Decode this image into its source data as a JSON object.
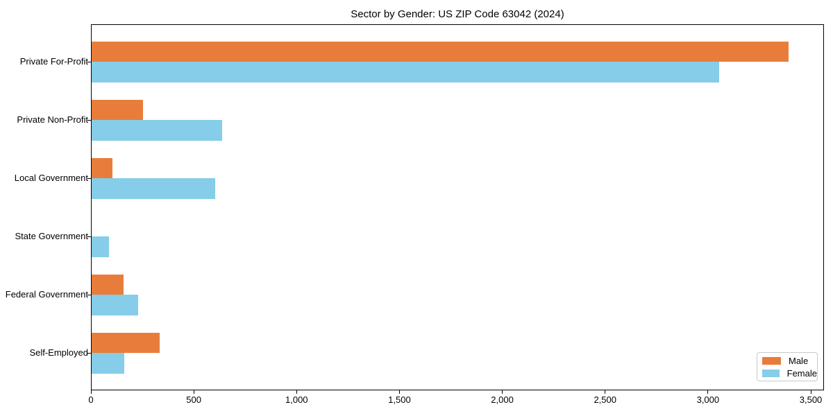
{
  "title": "Sector by Gender: US ZIP Code 63042 (2024)",
  "colors": {
    "male": "#e87d3b",
    "female": "#85cde8",
    "axis": "#000000",
    "legend_border": "#c9c9c9",
    "background": "#ffffff"
  },
  "legend": {
    "position": "lower right",
    "items": [
      {
        "label": "Male",
        "color_key": "male"
      },
      {
        "label": "Female",
        "color_key": "female"
      }
    ]
  },
  "chart_data": {
    "type": "bar",
    "orientation": "horizontal",
    "title": "Sector by Gender: US ZIP Code 63042 (2024)",
    "xlabel": "",
    "ylabel": "",
    "categories": [
      "Private For-Profit",
      "Private Non-Profit",
      "Local Government",
      "State Government",
      "Federal Government",
      "Self-Employed"
    ],
    "series": [
      {
        "name": "Male",
        "color_key": "male",
        "values": [
          3390,
          250,
          100,
          0,
          155,
          330
        ]
      },
      {
        "name": "Female",
        "color_key": "female",
        "values": [
          3050,
          635,
          600,
          85,
          225,
          160
        ]
      }
    ],
    "xlim": [
      0,
      3564
    ],
    "xticks": [
      0,
      500,
      1000,
      1500,
      2000,
      2500,
      3000,
      3500
    ],
    "xtick_labels": [
      "0",
      "500",
      "1,000",
      "1,500",
      "2,000",
      "2,500",
      "3,000",
      "3,500"
    ],
    "grid": false,
    "legend_position": "lower right"
  }
}
